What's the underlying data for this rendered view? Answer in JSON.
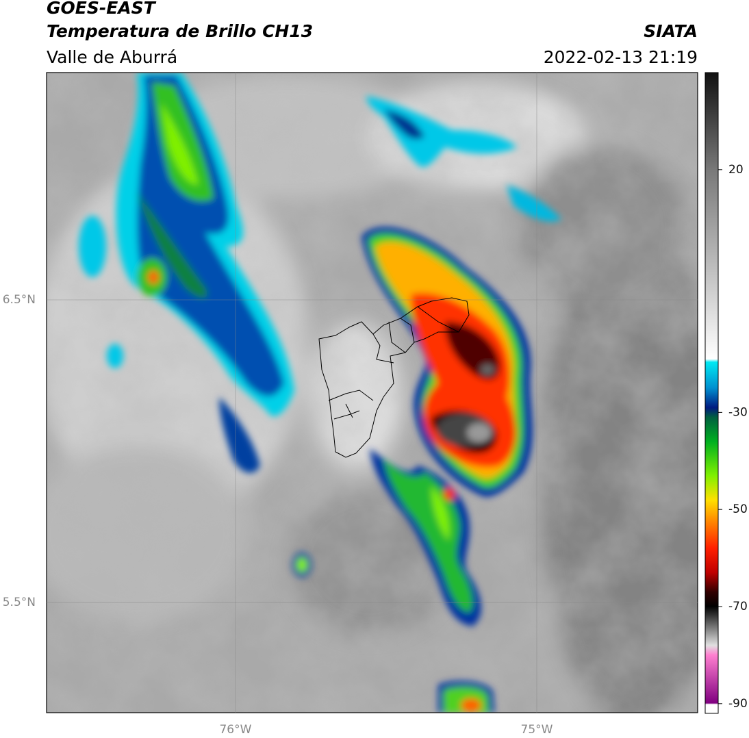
{
  "map": {
    "title": "GOES-EAST",
    "subtitle": "Temperatura de Brillo CH13",
    "region": "Valle de Aburrá",
    "source": "SIATA",
    "datetime": "2022-02-13 21:19",
    "lonlim": [
      -76.627,
      -74.466
    ],
    "latlim": [
      5.136,
      7.251
    ],
    "lonticks": [
      {
        "value": -76,
        "label": "76°W"
      },
      {
        "value": -75,
        "label": "75°W"
      }
    ],
    "latticks": [
      {
        "value": 6.5,
        "label": "6.5°N"
      },
      {
        "value": 5.5,
        "label": "5.5°N"
      }
    ],
    "colorbar": {
      "lim": [
        -92,
        40
      ],
      "ticks": [
        20,
        -30,
        -50,
        -70,
        -90
      ]
    }
  }
}
